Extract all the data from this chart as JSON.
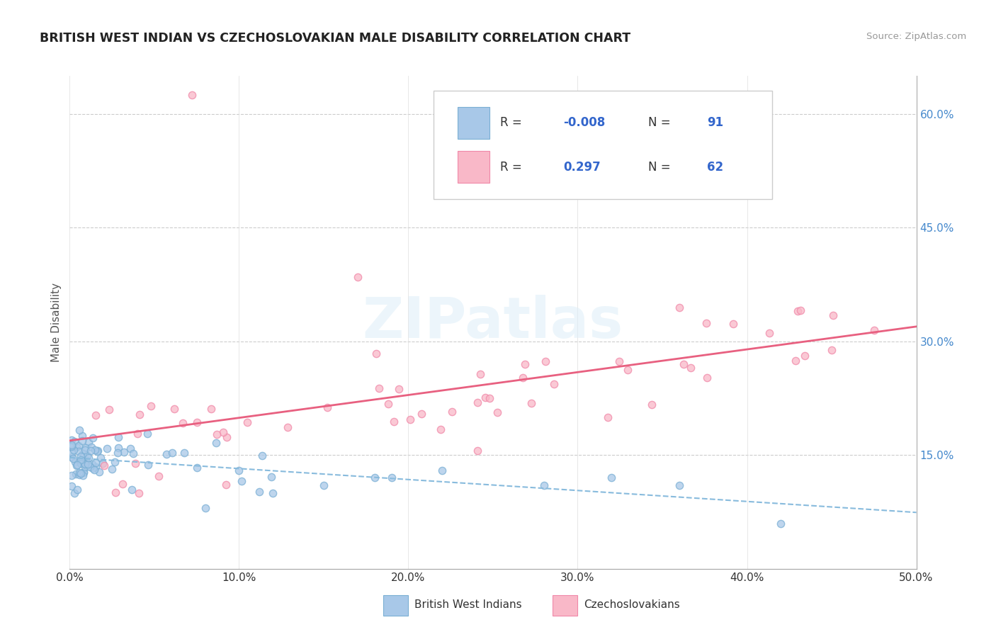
{
  "title": "BRITISH WEST INDIAN VS CZECHOSLOVAKIAN MALE DISABILITY CORRELATION CHART",
  "source": "Source: ZipAtlas.com",
  "ylabel": "Male Disability",
  "x_min": 0.0,
  "x_max": 0.5,
  "y_min": 0.0,
  "y_max": 0.65,
  "x_ticks": [
    0.0,
    0.1,
    0.2,
    0.3,
    0.4,
    0.5
  ],
  "x_tick_labels": [
    "0.0%",
    "10.0%",
    "20.0%",
    "30.0%",
    "40.0%",
    "50.0%"
  ],
  "y_ticks_right": [
    0.15,
    0.3,
    0.45,
    0.6
  ],
  "y_tick_labels_right": [
    "15.0%",
    "30.0%",
    "45.0%",
    "60.0%"
  ],
  "color_blue_fill": "#a8c8e8",
  "color_blue_edge": "#7aafd4",
  "color_pink_fill": "#f9b8c8",
  "color_pink_edge": "#f088a8",
  "color_blue_line": "#88bbdd",
  "color_pink_line": "#e86080",
  "grid_color": "#cccccc",
  "watermark_color": "#d8e8f0",
  "legend_text_color": "#333333",
  "legend_value_color": "#3366cc",
  "right_tick_color": "#4488cc",
  "bwi_R": -0.008,
  "bwi_N": 91,
  "czech_R": 0.297,
  "czech_N": 62
}
